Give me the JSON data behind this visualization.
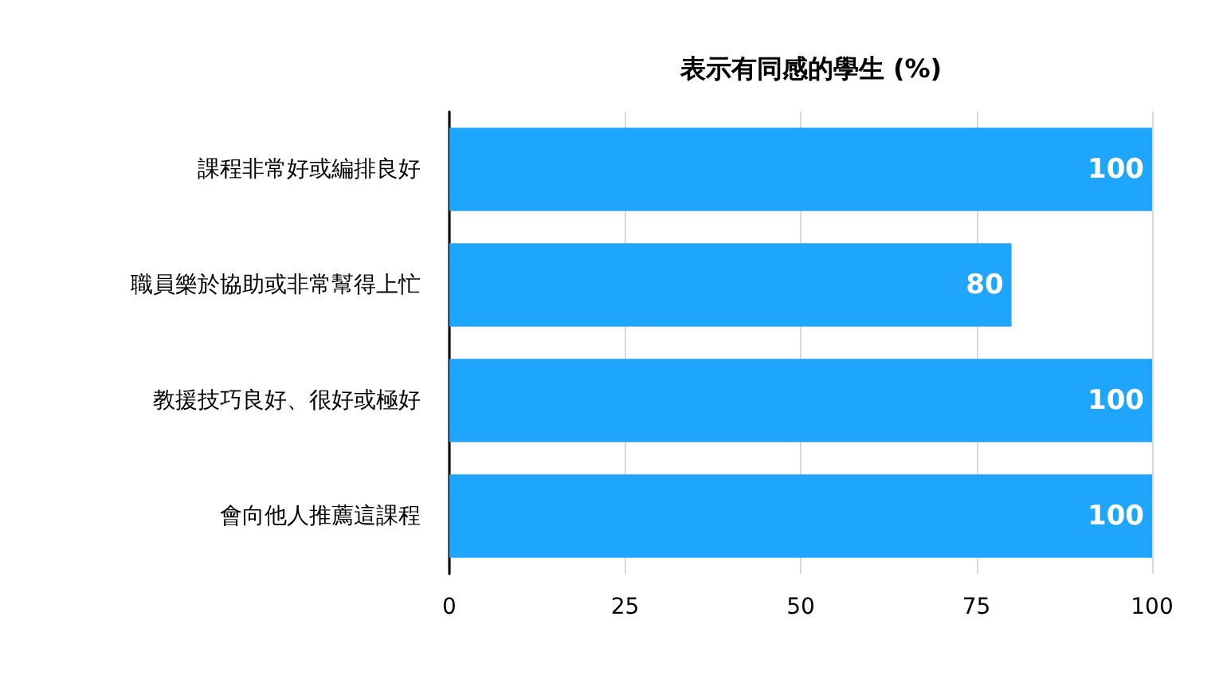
{
  "chart_data": {
    "type": "bar",
    "orientation": "horizontal",
    "title": "表示有同感的學生 (%)",
    "categories": [
      "課程非常好或編排良好",
      "職員樂於協助或非常幫得上忙",
      "教援技巧良好、很好或極好",
      "會向他人推薦這課程"
    ],
    "values": [
      100,
      80,
      100,
      100
    ],
    "color": "#1ea5fc",
    "xlim": [
      0,
      100
    ],
    "xticks": [
      0,
      25,
      50,
      75,
      100
    ],
    "grid": "x",
    "data_labels": true
  }
}
